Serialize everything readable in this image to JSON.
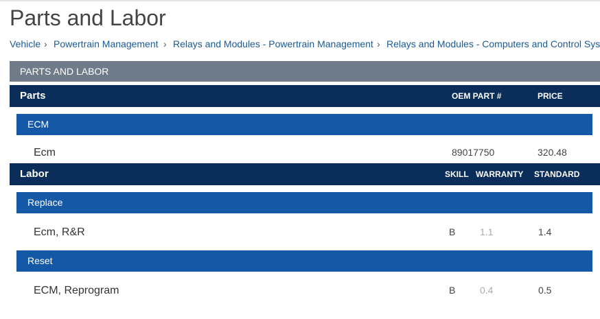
{
  "header": {
    "title": "Parts and Labor"
  },
  "breadcrumb": [
    "Vehicle",
    "Powertrain Management",
    "Relays and Modules - Powertrain Management",
    "Relays and Modules - Computers and Control Sys"
  ],
  "banner": "PARTS AND LABOR",
  "parts": {
    "heading": "Parts",
    "columns": [
      "OEM PART #",
      "PRICE"
    ],
    "groups": [
      {
        "name": "ECM",
        "rows": [
          {
            "name": "Ecm",
            "part": 89017750,
            "price": 320.48
          }
        ]
      }
    ]
  },
  "labor": {
    "heading": "Labor",
    "columns": [
      "SKILL",
      "WARRANTY",
      "STANDARD"
    ],
    "groups": [
      {
        "name": "Replace",
        "rows": [
          {
            "name": "Ecm, R&R",
            "skill": "B",
            "warranty": 1.1,
            "standard": 1.4
          }
        ]
      },
      {
        "name": "Reset",
        "rows": [
          {
            "name": "ECM, Reprogram",
            "skill": "B",
            "warranty": 0.4,
            "standard": 0.5
          }
        ]
      }
    ]
  }
}
